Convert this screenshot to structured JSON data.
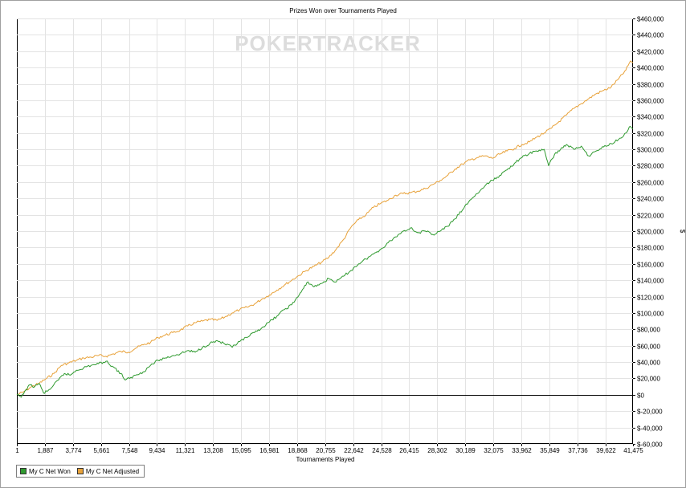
{
  "chart_data": {
    "type": "line",
    "title": "Prizes Won over Tournaments Played",
    "xlabel": "Tournaments Played",
    "ylabel": "$",
    "xlim": [
      1,
      41475
    ],
    "ylim": [
      -60000,
      460000
    ],
    "x_ticks": [
      1,
      1887,
      3774,
      5661,
      7548,
      9434,
      11321,
      13208,
      15095,
      16981,
      18868,
      20755,
      22642,
      24528,
      26415,
      28302,
      30189,
      32075,
      33962,
      35849,
      37736,
      39622,
      41475
    ],
    "x_tick_labels": [
      "1",
      "1,887",
      "3,774",
      "5,661",
      "7,548",
      "9,434",
      "11,321",
      "13,208",
      "15,095",
      "16,981",
      "18,868",
      "20,755",
      "22,642",
      "24,528",
      "26,415",
      "28,302",
      "30,189",
      "32,075",
      "33,962",
      "35,849",
      "37,736",
      "39,622",
      "41,475"
    ],
    "y_ticks": [
      -60000,
      -40000,
      -20000,
      0,
      20000,
      40000,
      60000,
      80000,
      100000,
      120000,
      140000,
      160000,
      180000,
      200000,
      220000,
      240000,
      260000,
      280000,
      300000,
      320000,
      340000,
      360000,
      380000,
      400000,
      420000,
      440000,
      460000
    ],
    "y_tick_labels": [
      "$-60,000",
      "$-40,000",
      "$-20,000",
      "$0",
      "$20,000",
      "$40,000",
      "$60,000",
      "$80,000",
      "$100,000",
      "$120,000",
      "$140,000",
      "$160,000",
      "$180,000",
      "$200,000",
      "$220,000",
      "$240,000",
      "$260,000",
      "$280,000",
      "$300,000",
      "$320,000",
      "$340,000",
      "$360,000",
      "$380,000",
      "$400,000",
      "$420,000",
      "$440,000",
      "$460,000"
    ],
    "y_axis_side": "right",
    "grid": true,
    "legend_position": "bottom-left",
    "watermark": "POKERTRACKER",
    "series": [
      {
        "name": "My C Net Adjusted",
        "color": "#e8a23a",
        "x": [
          1,
          400,
          1000,
          1500,
          2000,
          2500,
          3000,
          3500,
          4000,
          4500,
          5000,
          5500,
          6000,
          6500,
          7000,
          7500,
          8000,
          8500,
          9000,
          9500,
          10000,
          10500,
          11000,
          11500,
          12000,
          12500,
          13000,
          13500,
          14000,
          14500,
          15000,
          15500,
          16000,
          16500,
          17000,
          17500,
          18000,
          18500,
          19000,
          19500,
          20000,
          20500,
          21000,
          21500,
          22000,
          22500,
          23000,
          23500,
          24000,
          24500,
          25000,
          25500,
          26000,
          26500,
          27000,
          27500,
          28000,
          28500,
          29000,
          29500,
          30000,
          30500,
          31000,
          31500,
          32000,
          32500,
          33000,
          33500,
          34000,
          34500,
          35000,
          35500,
          36000,
          36500,
          37000,
          37500,
          38000,
          38500,
          39000,
          39500,
          40000,
          40500,
          41000,
          41300,
          41475
        ],
        "values": [
          0,
          3000,
          10000,
          14000,
          20000,
          26000,
          36000,
          39000,
          42000,
          45000,
          46000,
          48000,
          47000,
          50000,
          53000,
          52000,
          57000,
          61000,
          64000,
          70000,
          73000,
          76000,
          79000,
          84000,
          88000,
          90000,
          92000,
          91000,
          95000,
          100000,
          104000,
          107000,
          111000,
          117000,
          122000,
          128000,
          134000,
          140000,
          146000,
          152000,
          157000,
          162000,
          168000,
          178000,
          190000,
          205000,
          214000,
          220000,
          229000,
          234000,
          238000,
          244000,
          246000,
          247000,
          249000,
          252000,
          257000,
          262000,
          268000,
          276000,
          282000,
          287000,
          290000,
          292000,
          289000,
          294000,
          298000,
          301000,
          306000,
          309000,
          315000,
          320000,
          326000,
          334000,
          342000,
          350000,
          356000,
          362000,
          368000,
          372000,
          376000,
          386000,
          397000,
          408000,
          406000
        ]
      },
      {
        "name": "My C Net Won",
        "color": "#2f9a2f",
        "x": [
          1,
          300,
          600,
          900,
          1200,
          1500,
          1800,
          2100,
          2400,
          2800,
          3200,
          3600,
          4000,
          4500,
          5000,
          5500,
          6000,
          6500,
          7000,
          7300,
          7600,
          8000,
          8500,
          9000,
          9500,
          10000,
          10500,
          11000,
          11500,
          12000,
          12500,
          13000,
          13500,
          14000,
          14500,
          15000,
          15500,
          16000,
          16500,
          17000,
          17500,
          18000,
          18500,
          19000,
          19300,
          19600,
          20000,
          20500,
          21000,
          21500,
          22000,
          22500,
          23000,
          23500,
          24000,
          24500,
          25000,
          25500,
          26000,
          26500,
          27000,
          27500,
          28000,
          28500,
          29000,
          29500,
          30000,
          30500,
          31000,
          31500,
          32000,
          32500,
          33000,
          33500,
          34000,
          34500,
          35000,
          35500,
          35800,
          36200,
          36600,
          37000,
          37500,
          38000,
          38500,
          39000,
          39500,
          40000,
          40500,
          41000,
          41300,
          41475
        ],
        "values": [
          0,
          -3000,
          6000,
          12000,
          10000,
          14000,
          2000,
          5000,
          10000,
          18000,
          26000,
          24000,
          30000,
          33000,
          36000,
          38000,
          41000,
          34000,
          26000,
          18000,
          20000,
          24000,
          28000,
          36000,
          42000,
          45000,
          48000,
          50000,
          54000,
          52000,
          58000,
          63000,
          66000,
          62000,
          58000,
          65000,
          70000,
          76000,
          82000,
          89000,
          96000,
          104000,
          110000,
          122000,
          130000,
          138000,
          132000,
          136000,
          142000,
          138000,
          145000,
          152000,
          160000,
          166000,
          172000,
          178000,
          186000,
          193000,
          200000,
          204000,
          198000,
          200000,
          196000,
          200000,
          206000,
          215000,
          226000,
          238000,
          246000,
          255000,
          262000,
          268000,
          275000,
          283000,
          290000,
          295000,
          298000,
          300000,
          280000,
          294000,
          300000,
          306000,
          300000,
          304000,
          292000,
          298000,
          303000,
          307000,
          312000,
          320000,
          328000,
          325000
        ]
      }
    ]
  }
}
